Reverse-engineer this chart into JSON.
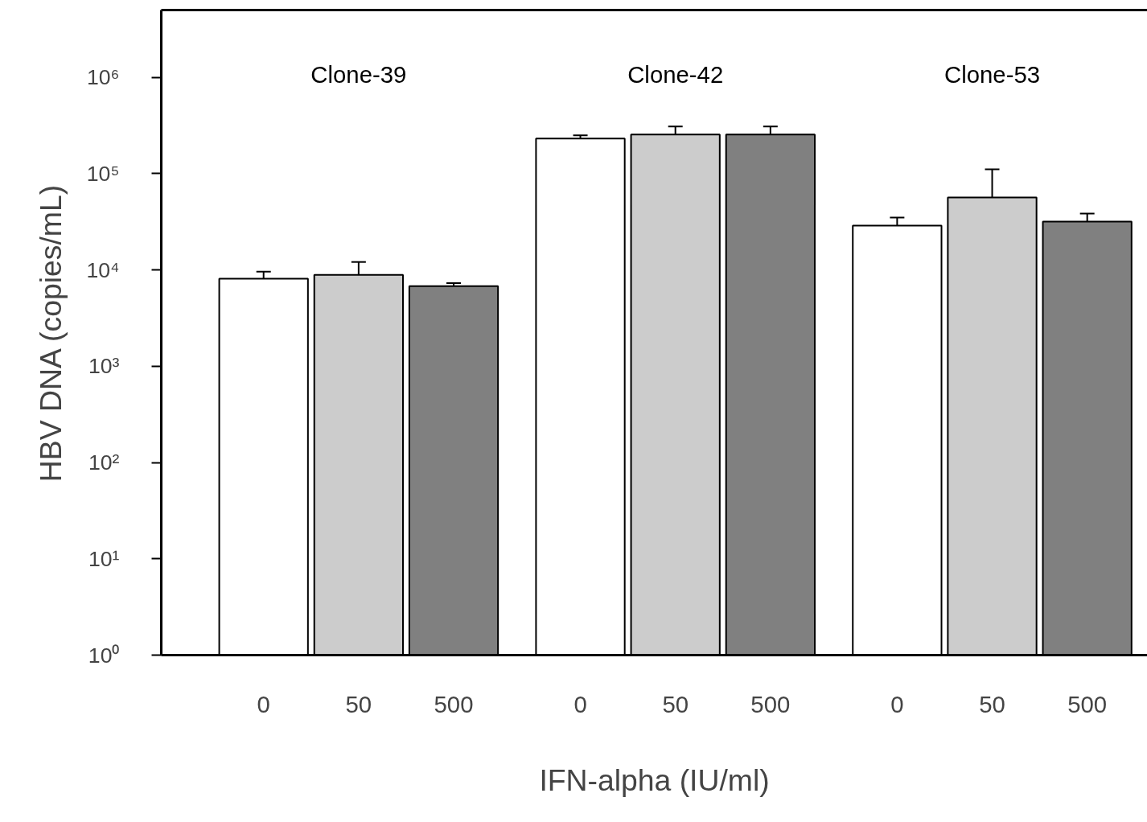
{
  "chart_data": {
    "type": "bar",
    "xlabel": "IFN-alpha (IU/ml)",
    "ylabel": "HBV DNA (copies/mL)",
    "categories": [
      "Clone-39",
      "Clone-42",
      "Clone-53"
    ],
    "series": [
      {
        "name": "0",
        "color": "#ffffff",
        "values": [
          8100,
          231000,
          28900
        ],
        "errors": [
          [
            8100,
            9600
          ],
          [
            231000,
            250000
          ],
          [
            28900,
            35000
          ]
        ]
      },
      {
        "name": "50",
        "color": "#cccccc",
        "values": [
          8900,
          255000,
          56600
        ],
        "errors": [
          [
            8900,
            12100
          ],
          [
            255000,
            309000
          ],
          [
            56600,
            111000
          ]
        ]
      },
      {
        "name": "500",
        "color": "#808080",
        "values": [
          6800,
          255000,
          31800
        ],
        "errors": [
          [
            6800,
            7300
          ],
          [
            255000,
            309000
          ],
          [
            31800,
            38500
          ]
        ]
      }
    ],
    "log": true,
    "ylim": [
      1,
      5000000
    ],
    "yticks": [
      {
        "value": 1,
        "label": "10⁰"
      },
      {
        "value": 10,
        "label": "10¹"
      },
      {
        "value": 100,
        "label": "10²"
      },
      {
        "value": 1000,
        "label": "10³"
      },
      {
        "value": 10000,
        "label": "10⁴"
      },
      {
        "value": 100000,
        "label": "10⁵"
      },
      {
        "value": 1000000,
        "label": "10⁶"
      }
    ],
    "grid": false
  }
}
